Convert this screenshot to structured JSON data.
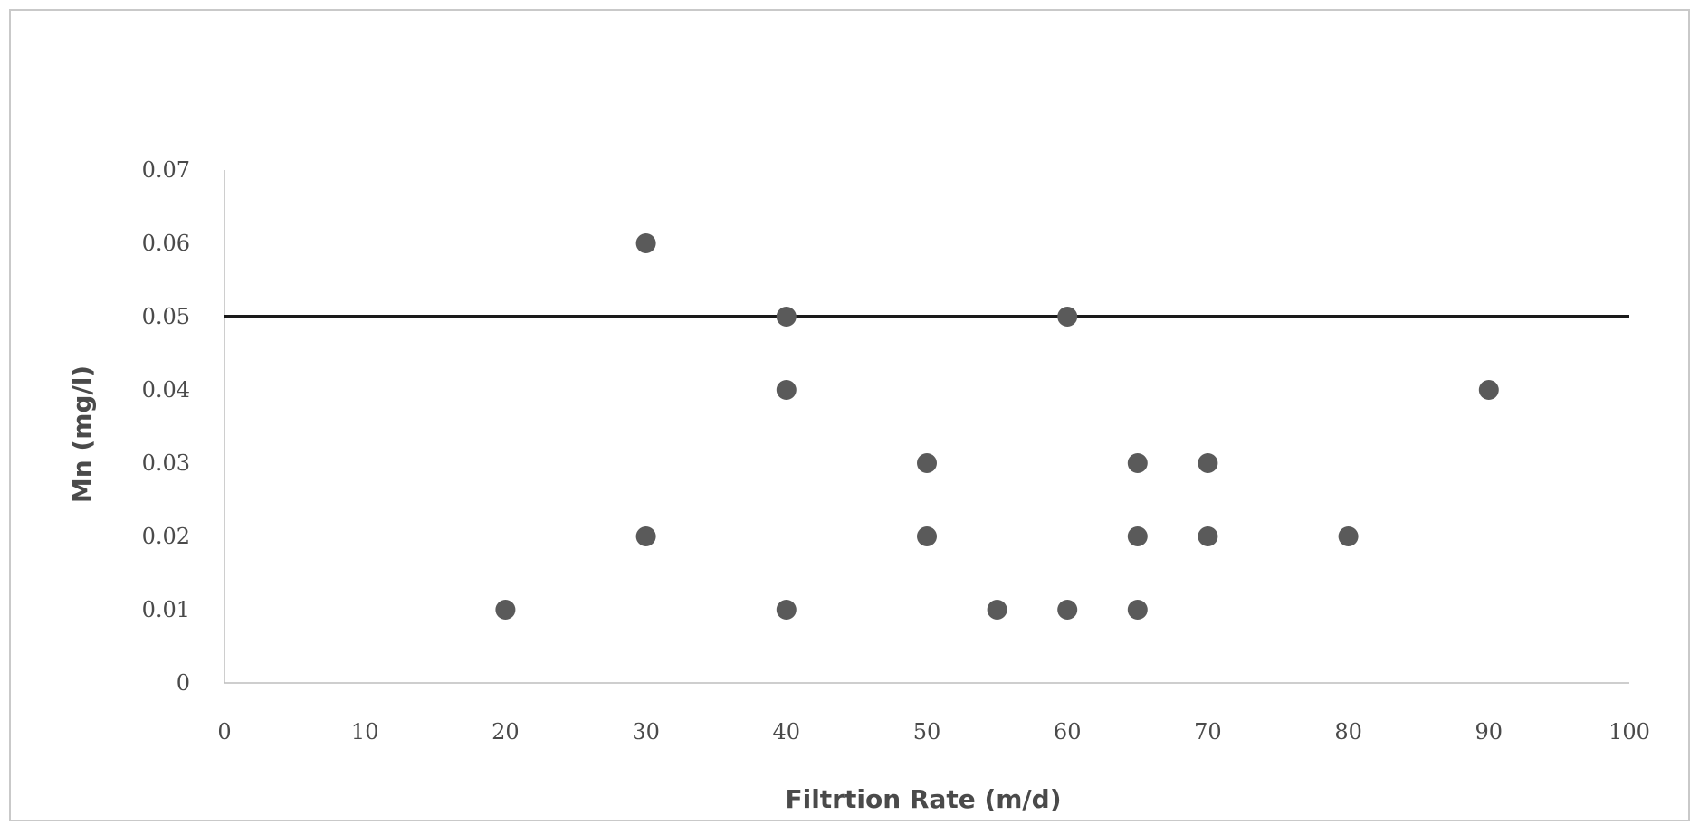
{
  "chart_data": {
    "type": "scatter",
    "xlabel": "Filtrtion Rate (m/d)",
    "ylabel": "Mn (mg/l)",
    "xlim": [
      0,
      100
    ],
    "ylim": [
      0,
      0.07
    ],
    "x_ticks": [
      "0",
      "10",
      "20",
      "30",
      "40",
      "50",
      "60",
      "70",
      "80",
      "90",
      "100"
    ],
    "y_ticks": [
      "0",
      "0.01",
      "0.02",
      "0.03",
      "0.04",
      "0.05",
      "0.06",
      "0.07"
    ],
    "grid": false,
    "points": [
      {
        "x": 20,
        "y": 0.01
      },
      {
        "x": 30,
        "y": 0.06
      },
      {
        "x": 30,
        "y": 0.02
      },
      {
        "x": 40,
        "y": 0.05
      },
      {
        "x": 40,
        "y": 0.04
      },
      {
        "x": 40,
        "y": 0.01
      },
      {
        "x": 50,
        "y": 0.03
      },
      {
        "x": 50,
        "y": 0.02
      },
      {
        "x": 55,
        "y": 0.01
      },
      {
        "x": 60,
        "y": 0.05
      },
      {
        "x": 60,
        "y": 0.01
      },
      {
        "x": 65,
        "y": 0.03
      },
      {
        "x": 65,
        "y": 0.02
      },
      {
        "x": 65,
        "y": 0.01
      },
      {
        "x": 70,
        "y": 0.03
      },
      {
        "x": 70,
        "y": 0.02
      },
      {
        "x": 80,
        "y": 0.02
      },
      {
        "x": 90,
        "y": 0.04
      }
    ],
    "reference_line": {
      "y": 0.05,
      "x_range": [
        0,
        100
      ]
    },
    "colors": {
      "marker": "#5a5a5a",
      "reference_line": "#1a1a1a",
      "axis": "#bdbdbd",
      "text": "#4a4a4a"
    }
  }
}
